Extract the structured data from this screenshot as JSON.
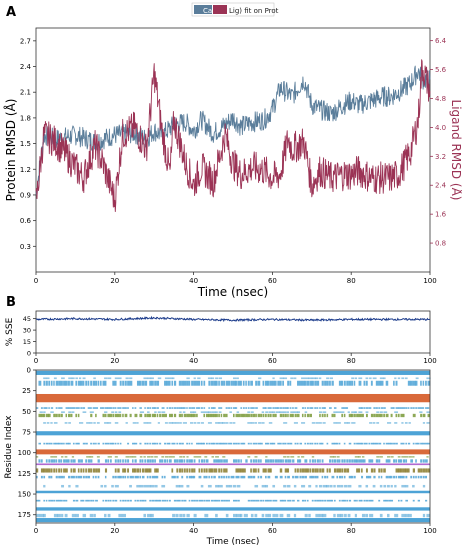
{
  "panels": {
    "a": "A",
    "b": "B"
  },
  "chart_data": [
    {
      "type": "line",
      "panel": "A",
      "legend": [
        "Ca",
        "Lig) fit on Prot"
      ],
      "legend_position": "top-center",
      "xlabel": "Time (nsec)",
      "ylabel": "Protein RMSD (Å)",
      "y2label": "Ligand RMSD (Å)",
      "xlim": [
        0,
        100
      ],
      "ylim": [
        0.0,
        2.85
      ],
      "y2lim": [
        0.0,
        6.75
      ],
      "xticks": [
        "0",
        "20",
        "40",
        "60",
        "80",
        "100"
      ],
      "yticks": [
        "0.3",
        "0.6",
        "0.9",
        "1.2",
        "1.5",
        "1.8",
        "2.1",
        "2.4",
        "2.7"
      ],
      "y2ticks": [
        "0.8",
        "1.6",
        "2.4",
        "3.2",
        "4.0",
        "4.8",
        "5.6",
        "6.4"
      ],
      "series": [
        {
          "name": "Ca",
          "color": "#5a7d9a",
          "axis": "left",
          "x": [
            0,
            2,
            5,
            10,
            15,
            20,
            25,
            28,
            30,
            32,
            35,
            38,
            40,
            42,
            45,
            48,
            50,
            52,
            55,
            58,
            60,
            62,
            65,
            68,
            70,
            72,
            75,
            78,
            80,
            82,
            85,
            88,
            90,
            92,
            95,
            97,
            98,
            100
          ],
          "values": [
            0.9,
            1.6,
            1.55,
            1.6,
            1.52,
            1.6,
            1.62,
            1.55,
            1.65,
            1.6,
            1.72,
            1.75,
            1.65,
            1.78,
            1.62,
            1.72,
            1.8,
            1.7,
            1.75,
            1.78,
            1.9,
            2.15,
            2.05,
            2.25,
            1.95,
            1.9,
            1.85,
            1.95,
            2.0,
            1.95,
            2.0,
            2.05,
            2.05,
            2.1,
            2.2,
            2.35,
            2.25,
            2.25
          ]
        },
        {
          "name": "Lig) fit on Prot",
          "color": "#9b3355",
          "axis": "right",
          "x": [
            0,
            2,
            5,
            8,
            10,
            12,
            15,
            17,
            20,
            22,
            25,
            28,
            29,
            30,
            32,
            34,
            35,
            38,
            40,
            42,
            45,
            48,
            50,
            52,
            55,
            58,
            60,
            62,
            64,
            65,
            68,
            70,
            72,
            75,
            78,
            80,
            82,
            85,
            88,
            90,
            92,
            95,
            97,
            98,
            100
          ],
          "values": [
            1.9,
            3.8,
            3.6,
            3.2,
            2.9,
            2.6,
            3.5,
            3.0,
            2.0,
            3.8,
            4.0,
            3.4,
            4.4,
            5.5,
            3.9,
            2.7,
            4.2,
            3.0,
            2.4,
            2.9,
            2.5,
            3.8,
            3.0,
            2.7,
            2.9,
            2.8,
            2.6,
            2.7,
            3.7,
            3.4,
            3.6,
            2.4,
            2.8,
            2.6,
            2.7,
            2.7,
            2.8,
            2.6,
            2.6,
            2.6,
            2.7,
            3.3,
            4.2,
            5.7,
            5.0
          ]
        }
      ]
    },
    {
      "type": "line",
      "panel": "B-top",
      "xlabel": "",
      "ylabel": "% SSE",
      "xlim": [
        0,
        100
      ],
      "ylim": [
        0,
        55
      ],
      "xticks": [
        "0",
        "20",
        "40",
        "60",
        "80",
        "100"
      ],
      "yticks": [
        "0",
        "15",
        "30",
        "45"
      ],
      "series": [
        {
          "color": "#1a3a8a",
          "x": [
            0,
            10,
            20,
            30,
            40,
            50,
            60,
            70,
            80,
            90,
            100
          ],
          "values": [
            44,
            45,
            44,
            46,
            44,
            43,
            44,
            43,
            44,
            44,
            44
          ]
        }
      ]
    },
    {
      "type": "heatmap",
      "panel": "B-bottom",
      "xlabel": "Time (nsec)",
      "ylabel": "Residue Index",
      "xlim": [
        0,
        100
      ],
      "ylim": [
        0,
        185
      ],
      "xticks": [
        "0",
        "20",
        "40",
        "60",
        "80",
        "100"
      ],
      "yticks": [
        "0",
        "25",
        "50",
        "75",
        "100",
        "125",
        "150",
        "175"
      ],
      "bands": [
        {
          "start": 1,
          "end": 6,
          "color": "#4da3d6",
          "density": "solid"
        },
        {
          "start": 9,
          "end": 11,
          "color": "#4da3d6",
          "density": "sparse"
        },
        {
          "start": 13,
          "end": 19,
          "color": "#4da3d6",
          "density": "medium"
        },
        {
          "start": 29,
          "end": 39,
          "color": "#d9693a",
          "density": "solid"
        },
        {
          "start": 45,
          "end": 47,
          "color": "#4da3d6",
          "density": "medium"
        },
        {
          "start": 50,
          "end": 52,
          "color": "#4da3d6",
          "density": "sparse"
        },
        {
          "start": 53,
          "end": 57,
          "color": "#7a9a3a",
          "density": "medium"
        },
        {
          "start": 63,
          "end": 65,
          "color": "#4da3d6",
          "density": "sparse"
        },
        {
          "start": 74,
          "end": 79,
          "color": "#4da3d6",
          "density": "solid"
        },
        {
          "start": 88,
          "end": 90,
          "color": "#4da3d6",
          "density": "medium"
        },
        {
          "start": 96,
          "end": 102,
          "color": "#d9693a",
          "density": "solid"
        },
        {
          "start": 104,
          "end": 106,
          "color": "#7a9a3a",
          "density": "sparse"
        },
        {
          "start": 108,
          "end": 112,
          "color": "#4da3d6",
          "density": "medium"
        },
        {
          "start": 113,
          "end": 115,
          "color": "#b06ad0",
          "density": "solid"
        },
        {
          "start": 119,
          "end": 124,
          "color": "#8a7a2a",
          "density": "medium"
        },
        {
          "start": 128,
          "end": 131,
          "color": "#4da3d6",
          "density": "medium"
        },
        {
          "start": 139,
          "end": 142,
          "color": "#4da3d6",
          "density": "sparse"
        },
        {
          "start": 146,
          "end": 149,
          "color": "#4da3d6",
          "density": "solid"
        },
        {
          "start": 157,
          "end": 159,
          "color": "#4da3d6",
          "density": "medium"
        },
        {
          "start": 166,
          "end": 170,
          "color": "#4da3d6",
          "density": "solid"
        },
        {
          "start": 174,
          "end": 178,
          "color": "#4da3d6",
          "density": "sparse"
        },
        {
          "start": 179,
          "end": 184,
          "color": "#4da3d6",
          "density": "solid"
        }
      ]
    }
  ]
}
